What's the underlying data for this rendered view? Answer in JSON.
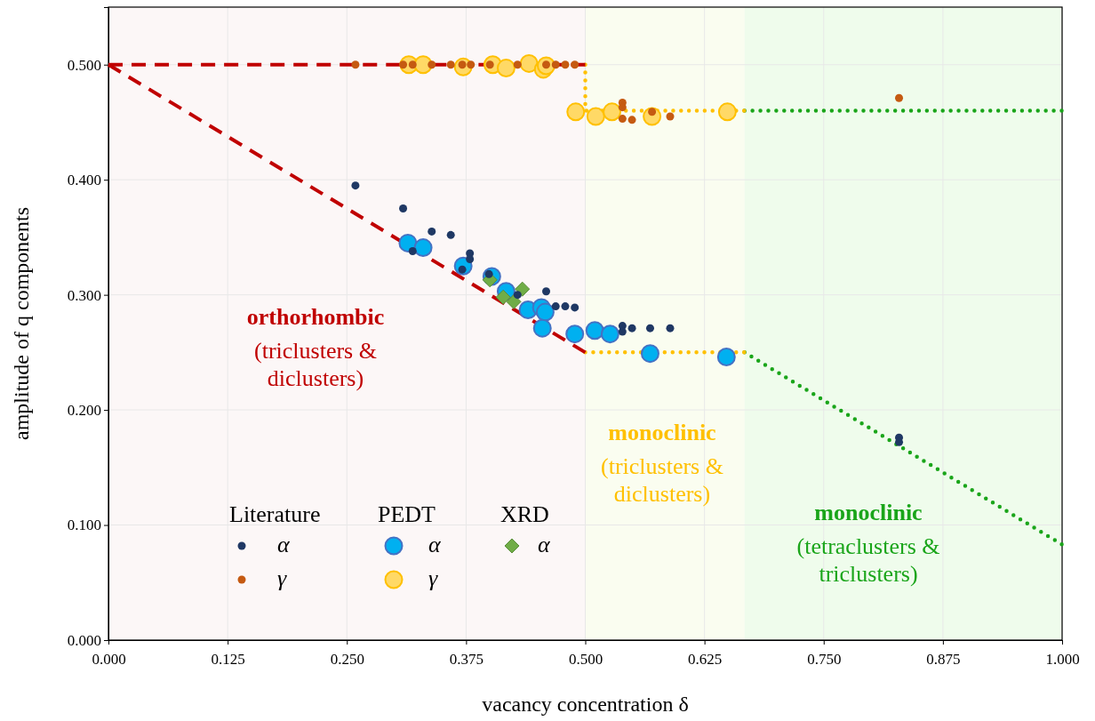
{
  "chart_data": {
    "type": "scatter",
    "xlabel": "vacancy concentration δ",
    "ylabel": "amplitude of q components",
    "xlim": [
      0,
      1
    ],
    "ylim": [
      0,
      0.55
    ],
    "xticks": [
      {
        "value": 0,
        "label": "0.000"
      },
      {
        "value": 0.125,
        "label": "0.125"
      },
      {
        "value": 0.25,
        "label": "0.250"
      },
      {
        "value": 0.375,
        "label": "0.375"
      },
      {
        "value": 0.5,
        "label": "0.500"
      },
      {
        "value": 0.625,
        "label": "0.625"
      },
      {
        "value": 0.75,
        "label": "0.750"
      },
      {
        "value": 0.875,
        "label": "0.875"
      },
      {
        "value": 1,
        "label": "1.000"
      }
    ],
    "yticks": [
      {
        "value": 0,
        "label": "0.000"
      },
      {
        "value": 0.1,
        "label": "0.100"
      },
      {
        "value": 0.2,
        "label": "0.200"
      },
      {
        "value": 0.3,
        "label": "0.300"
      },
      {
        "value": 0.4,
        "label": "0.400"
      },
      {
        "value": 0.5,
        "label": "0.500"
      }
    ],
    "grid": true,
    "legend": "bottom left",
    "bands": [
      {
        "axis": "x",
        "from": 0,
        "to": 0.5,
        "color": "#fcf7f7"
      },
      {
        "axis": "x",
        "from": 0.5,
        "to": 0.667,
        "color": "#fafdf0"
      },
      {
        "axis": "x",
        "from": 0.667,
        "to": 1,
        "color": "#effcec"
      }
    ],
    "series": [
      {
        "type": "line",
        "marker": "none",
        "line_style": "dashed",
        "color": "#c00000",
        "x": [
          0,
          0.5
        ],
        "values": [
          0.5,
          0.5
        ]
      },
      {
        "type": "line",
        "marker": "none",
        "line_style": "dashed",
        "color": "#c00000",
        "x": [
          0,
          0.5
        ],
        "values": [
          0.5,
          0.25
        ]
      },
      {
        "type": "line",
        "marker": "none",
        "line_style": "dotted",
        "color": "#ffc000",
        "x": [
          0.5,
          0.5,
          0.667
        ],
        "values": [
          0.5,
          0.46,
          0.46
        ]
      },
      {
        "type": "line",
        "marker": "none",
        "line_style": "dotted",
        "color": "#ffc000",
        "x": [
          0.5,
          0.667
        ],
        "values": [
          0.25,
          0.25
        ]
      },
      {
        "type": "line",
        "marker": "none",
        "line_style": "dotted",
        "color": "#1aa51a",
        "x": [
          0.667,
          1
        ],
        "values": [
          0.46,
          0.46
        ]
      },
      {
        "type": "line",
        "marker": "none",
        "line_style": "dotted",
        "color": "#1aa51a",
        "x": [
          0.667,
          1
        ],
        "values": [
          0.25,
          0.083
        ]
      },
      {
        "name": "α",
        "marker": "circle",
        "color": "#1f3864",
        "x": [
          0.259,
          0.309,
          0.319,
          0.339,
          0.359,
          0.379,
          0.379,
          0.371,
          0.399,
          0.429,
          0.459,
          0.469,
          0.479,
          0.489,
          0.539,
          0.539,
          0.549,
          0.568,
          0.589,
          0.829,
          0.829
        ],
        "values": [
          0.395,
          0.375,
          0.338,
          0.355,
          0.352,
          0.336,
          0.331,
          0.322,
          0.318,
          0.3,
          0.303,
          0.29,
          0.29,
          0.289,
          0.273,
          0.268,
          0.271,
          0.271,
          0.271,
          0.176,
          0.172
        ]
      },
      {
        "name": "γ",
        "marker": "circle",
        "color": "#c55a11",
        "x": [
          0.259,
          0.309,
          0.319,
          0.339,
          0.359,
          0.371,
          0.38,
          0.4,
          0.429,
          0.459,
          0.469,
          0.479,
          0.489,
          0.539,
          0.539,
          0.539,
          0.549,
          0.57,
          0.589,
          0.829
        ],
        "values": [
          0.5,
          0.5,
          0.5,
          0.5,
          0.5,
          0.5,
          0.5,
          0.5,
          0.5,
          0.5,
          0.5,
          0.5,
          0.5,
          0.467,
          0.463,
          0.453,
          0.452,
          0.459,
          0.455,
          0.471
        ]
      },
      {
        "name": "α",
        "marker": "circle",
        "color": "#00b0f0",
        "x": [
          0.314,
          0.33,
          0.372,
          0.402,
          0.417,
          0.44,
          0.454,
          0.458,
          0.455,
          0.489,
          0.51,
          0.526,
          0.568,
          0.648
        ],
        "values": [
          0.345,
          0.341,
          0.325,
          0.316,
          0.303,
          0.287,
          0.289,
          0.285,
          0.271,
          0.266,
          0.269,
          0.266,
          0.249,
          0.246
        ]
      },
      {
        "name": "γ",
        "marker": "circle",
        "color": "#ffd966",
        "x": [
          0.315,
          0.33,
          0.372,
          0.403,
          0.417,
          0.441,
          0.456,
          0.459,
          0.49,
          0.511,
          0.528,
          0.57,
          0.649
        ],
        "values": [
          0.5,
          0.5,
          0.498,
          0.5,
          0.497,
          0.501,
          0.496,
          0.499,
          0.459,
          0.455,
          0.459,
          0.455,
          0.459
        ]
      },
      {
        "name": "α",
        "marker": "diamond",
        "color": "#70ad47",
        "x": [
          0.4,
          0.434,
          0.425,
          0.414
        ],
        "values": [
          0.313,
          0.305,
          0.294,
          0.298
        ]
      }
    ],
    "annotations": [
      "orthorhombic",
      "(triclusters & diclusters)",
      "monoclinic",
      "(triclusters & diclusters)",
      "monoclinic",
      "(tetraclusters & triclusters)",
      "Literature",
      "PEDT",
      "XRD"
    ]
  }
}
